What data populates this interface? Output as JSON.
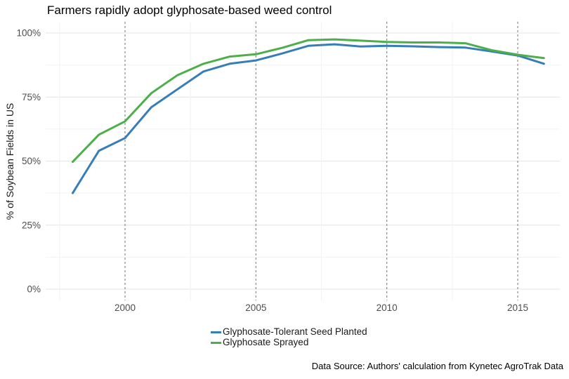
{
  "chart_data": {
    "type": "line",
    "title": "Farmers rapidly adopt glyphosate-based weed control",
    "xlabel": "",
    "ylabel": "% of Soybean Fields in US",
    "caption": "Data Source: Authors' calculation from Kynetec AgroTrak Data",
    "x": [
      1998,
      1999,
      2000,
      2001,
      2002,
      2003,
      2004,
      2005,
      2006,
      2007,
      2008,
      2009,
      2010,
      2011,
      2012,
      2013,
      2014,
      2015,
      2016
    ],
    "series": [
      {
        "name": "Glyphosate-Tolerant Seed Planted",
        "color": "#377EB8",
        "values": [
          37.5,
          54,
          59,
          71,
          78,
          85,
          88,
          89.3,
          92,
          95,
          95.6,
          94.7,
          95,
          94.8,
          94.5,
          94.3,
          92.8,
          91.2,
          88
        ]
      },
      {
        "name": "Glyphosate Sprayed",
        "color": "#4DAF4A",
        "values": [
          49.7,
          60.3,
          65.5,
          76.5,
          83.5,
          88,
          90.8,
          91.7,
          94.2,
          97.2,
          97.5,
          97,
          96.5,
          96.3,
          96.3,
          96,
          93.3,
          91.5,
          90.2
        ]
      }
    ],
    "x_ticks": [
      2000,
      2005,
      2010,
      2015
    ],
    "x_tick_labels": [
      "2000",
      "2005",
      "2010",
      "2015"
    ],
    "y_ticks": [
      0,
      25,
      50,
      75,
      100
    ],
    "y_tick_labels": [
      "0%",
      "25%",
      "50%",
      "75%",
      "100%"
    ],
    "ylim": [
      0,
      100
    ],
    "xlim": [
      1997,
      2016.6
    ],
    "grid": "horizontal major and minor solid light-gray; vertical minor solid light-gray; dashed gray vertical guide lines at major x ticks",
    "legend_position": "bottom",
    "colors": {
      "grid_major": "#E4E4E4",
      "grid_minor": "#F2F2F2",
      "vline_dashed": "#8C8C8C",
      "tick_text": "#4D4D4D",
      "title_text": "#000000"
    }
  }
}
